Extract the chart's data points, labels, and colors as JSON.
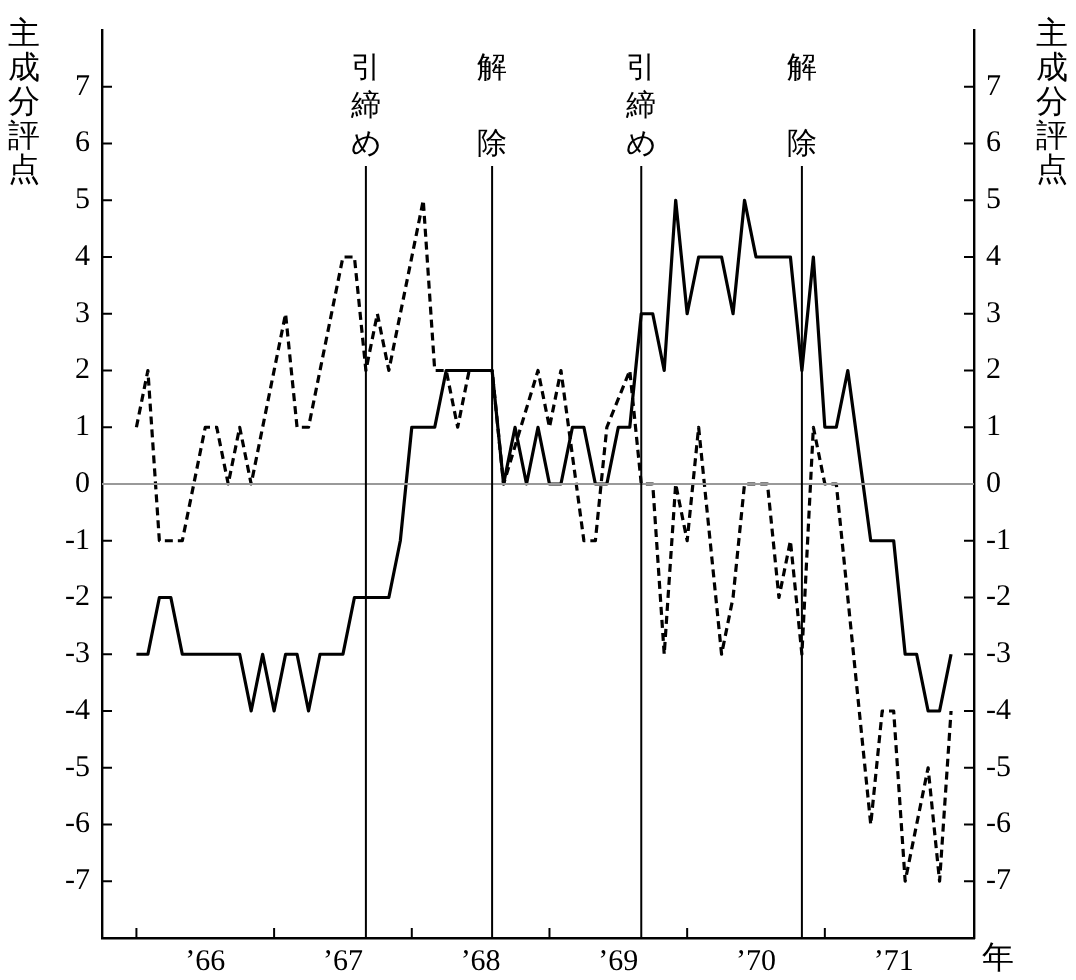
{
  "chart_data": {
    "type": "line",
    "xlabel": "年",
    "ylabel": "主成分評点",
    "y2label": "主成分評点",
    "xlim": [
      "1965-10",
      "1972-02"
    ],
    "xticks": [
      {
        "value": "1966-01",
        "label": null
      },
      {
        "value": "1966-07",
        "label": "’66"
      },
      {
        "value": "1967-01",
        "label": null
      },
      {
        "value": "1967-07",
        "label": "’67"
      },
      {
        "value": "1968-01",
        "label": null
      },
      {
        "value": "1968-07",
        "label": "’68"
      },
      {
        "value": "1969-01",
        "label": null
      },
      {
        "value": "1969-07",
        "label": "’69"
      },
      {
        "value": "1970-01",
        "label": null
      },
      {
        "value": "1970-07",
        "label": "’70"
      },
      {
        "value": "1971-01",
        "label": null
      },
      {
        "value": "1971-07",
        "label": "’71"
      }
    ],
    "ylim": [
      -8,
      8
    ],
    "yticks": [
      -7,
      -6,
      -5,
      -4,
      -3,
      -2,
      -1,
      0,
      1,
      2,
      3,
      4,
      5,
      6,
      7
    ],
    "y2lim": [
      -8,
      8
    ],
    "y2ticks": [
      -7,
      -6,
      -5,
      -4,
      -3,
      -2,
      -1,
      0,
      1,
      2,
      3,
      4,
      5,
      6,
      7
    ],
    "marker": "none",
    "series": [
      {
        "color": "#000000",
        "line_style": "solid",
        "x": [
          "1966-01",
          "1966-02",
          "1966-03",
          "1966-04",
          "1966-05",
          "1966-10",
          "1966-11",
          "1966-12",
          "1967-01",
          "1967-02",
          "1967-03",
          "1967-04",
          "1967-05",
          "1967-07",
          "1967-08",
          "1967-11",
          "1967-12",
          "1968-01",
          "1968-03",
          "1968-04",
          "1968-08",
          "1968-09",
          "1968-10",
          "1968-11",
          "1968-12",
          "1969-01",
          "1969-02",
          "1969-03",
          "1969-04",
          "1969-05",
          "1969-06",
          "1969-07",
          "1969-08",
          "1969-09",
          "1969-10",
          "1969-11",
          "1969-12",
          "1970-01",
          "1970-02",
          "1970-04",
          "1970-05",
          "1970-06",
          "1970-07",
          "1970-10",
          "1970-11",
          "1970-12",
          "1971-01",
          "1971-02",
          "1971-03",
          "1971-05",
          "1971-07",
          "1971-08",
          "1971-09",
          "1971-10",
          "1971-11",
          "1971-12"
        ],
        "values": [
          -3,
          -3,
          -2,
          -2,
          -3,
          -3,
          -4,
          -3,
          -4,
          -3,
          -3,
          -4,
          -3,
          -3,
          -2,
          -2,
          -1,
          1,
          1,
          2,
          2,
          0,
          1,
          0,
          1,
          0,
          0,
          1,
          1,
          0,
          0,
          1,
          1,
          3,
          3,
          2,
          5,
          3,
          4,
          4,
          3,
          5,
          4,
          4,
          2,
          4,
          1,
          1,
          2,
          -1,
          -1,
          -3,
          -3,
          -4,
          -4,
          -3
        ]
      },
      {
        "color": "#000000",
        "line_style": "dashed",
        "x": [
          "1966-01",
          "1966-02",
          "1966-03",
          "1966-05",
          "1966-07",
          "1966-08",
          "1966-09",
          "1966-10",
          "1966-11",
          "1967-02",
          "1967-03",
          "1967-04",
          "1967-07",
          "1967-08",
          "1967-09",
          "1967-10",
          "1967-11",
          "1968-02",
          "1968-03",
          "1968-04",
          "1968-05",
          "1968-06",
          "1968-08",
          "1968-09",
          "1968-12",
          "1969-01",
          "1969-02",
          "1969-04",
          "1969-05",
          "1969-06",
          "1969-08",
          "1969-09",
          "1969-10",
          "1969-11",
          "1969-12",
          "1970-01",
          "1970-02",
          "1970-04",
          "1970-05",
          "1970-06",
          "1970-08",
          "1970-09",
          "1970-10",
          "1970-11",
          "1970-12",
          "1971-01",
          "1971-02",
          "1971-05",
          "1971-06",
          "1971-07",
          "1971-08",
          "1971-10",
          "1971-11",
          "1971-12"
        ],
        "values": [
          1,
          2,
          -1,
          -1,
          1,
          1,
          0,
          1,
          0,
          3,
          1,
          1,
          4,
          4,
          2,
          3,
          2,
          5,
          2,
          2,
          1,
          2,
          2,
          0,
          2,
          1,
          2,
          -1,
          -1,
          1,
          2,
          0,
          0,
          -3,
          0,
          -1,
          1,
          -3,
          -2,
          0,
          0,
          -2,
          -1,
          -3,
          1,
          0,
          0,
          -6,
          -4,
          -4,
          -7,
          -5,
          -7,
          -4
        ]
      }
    ],
    "ref_lines": [
      {
        "axis": "y",
        "value": 0,
        "color": "#999999"
      },
      {
        "axis": "x",
        "value": "1967-09",
        "label": "引締め",
        "color": "#000000"
      },
      {
        "axis": "x",
        "value": "1968-08",
        "label": "解除",
        "color": "#000000"
      },
      {
        "axis": "x",
        "value": "1969-09",
        "label": "引締め",
        "color": "#000000"
      },
      {
        "axis": "x",
        "value": "1970-11",
        "label": "解除",
        "color": "#000000"
      }
    ]
  }
}
